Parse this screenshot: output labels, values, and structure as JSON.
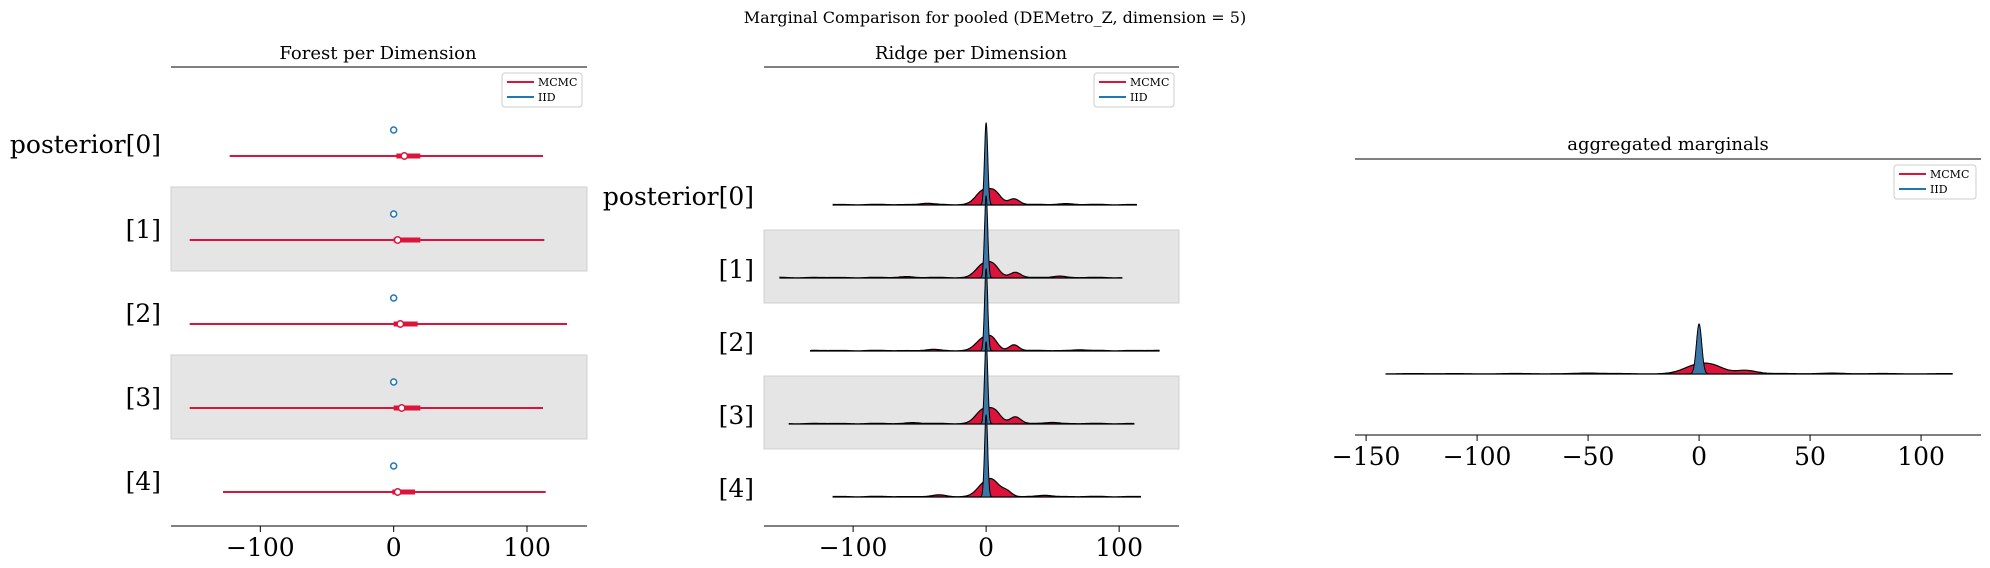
{
  "figure": {
    "title": "Marginal Comparison for pooled (DEMetro_Z, dimension = 5)"
  },
  "colors": {
    "mcmc": "#dc143c",
    "iid": "#1f77b4",
    "iid_fill": "#3b78a8",
    "band": "#e5e5e5"
  },
  "chart_data": [
    {
      "type": "forest",
      "title": "Forest per Dimension",
      "row_labels": [
        "posterior[0]",
        "[1]",
        "[2]",
        "[3]",
        "[4]"
      ],
      "x_ticks": [
        -100,
        0,
        100
      ],
      "x_tick_labels": [
        "−100",
        "0",
        "100"
      ],
      "xlim": [
        -167,
        145
      ],
      "legend": {
        "placement": "top-right",
        "entries": [
          "MCMC",
          "IID"
        ]
      },
      "series": [
        {
          "name": "MCMC",
          "rows": [
            {
              "low": -123,
              "q_low": 2,
              "median": 8,
              "q_high": 20,
              "high": 112
            },
            {
              "low": -153,
              "q_low": 0,
              "median": 3,
              "q_high": 20,
              "high": 113
            },
            {
              "low": -153,
              "q_low": 0,
              "median": 5,
              "q_high": 18,
              "high": 130
            },
            {
              "low": -153,
              "q_low": 0,
              "median": 6,
              "q_high": 20,
              "high": 112
            },
            {
              "low": -128,
              "q_low": -1,
              "median": 3,
              "q_high": 16,
              "high": 114
            }
          ]
        },
        {
          "name": "IID",
          "rows": [
            {
              "low": -2,
              "q_low": -1,
              "median": 0,
              "q_high": 1,
              "high": 2
            },
            {
              "low": -2,
              "q_low": -1,
              "median": 0,
              "q_high": 1,
              "high": 2
            },
            {
              "low": -2,
              "q_low": -1,
              "median": 0,
              "q_high": 1,
              "high": 2
            },
            {
              "low": -2,
              "q_low": -1,
              "median": 0,
              "q_high": 1,
              "high": 2
            },
            {
              "low": -2,
              "q_low": -1,
              "median": 0,
              "q_high": 1,
              "high": 2
            }
          ]
        }
      ]
    },
    {
      "type": "ridge",
      "title": "Ridge per Dimension",
      "row_labels": [
        "posterior[0]",
        "[1]",
        "[2]",
        "[3]",
        "[4]"
      ],
      "x_ticks": [
        -100,
        0,
        100
      ],
      "x_tick_labels": [
        "−100",
        "0",
        "100"
      ],
      "xlim": [
        -167,
        145
      ],
      "legend": {
        "placement": "top-right",
        "entries": [
          "MCMC",
          "IID"
        ]
      },
      "rows": [
        {
          "mcmc_range": [
            -115,
            113
          ],
          "mcmc_peaks": [
            [
              -2,
              1.4,
              0.14
            ],
            [
              7,
              1.0,
              0.11
            ],
            [
              21,
              0.6,
              0.1
            ],
            [
              -45,
              0.12,
              0.12
            ],
            [
              60,
              0.1,
              0.12
            ]
          ],
          "iid": {
            "mean": 0,
            "sd": 1.2
          }
        },
        {
          "mcmc_range": [
            -155,
            102
          ],
          "mcmc_peaks": [
            [
              -2,
              1.3,
              0.14
            ],
            [
              6,
              0.9,
              0.11
            ],
            [
              22,
              0.55,
              0.1
            ],
            [
              -60,
              0.1,
              0.12
            ],
            [
              55,
              0.15,
              0.12
            ]
          ],
          "iid": {
            "mean": 0,
            "sd": 1.2
          }
        },
        {
          "mcmc_range": [
            -132,
            130
          ],
          "mcmc_peaks": [
            [
              -2,
              1.2,
              0.14
            ],
            [
              5,
              0.8,
              0.1
            ],
            [
              21,
              0.6,
              0.09
            ],
            [
              -40,
              0.1,
              0.12
            ],
            [
              70,
              0.08,
              0.12
            ]
          ],
          "iid": {
            "mean": 0,
            "sd": 1.2
          }
        },
        {
          "mcmc_range": [
            -148,
            111
          ],
          "mcmc_peaks": [
            [
              -2,
              1.4,
              0.14
            ],
            [
              7,
              1.0,
              0.11
            ],
            [
              22,
              0.7,
              0.1
            ],
            [
              -55,
              0.1,
              0.12
            ],
            [
              50,
              0.12,
              0.12
            ]
          ],
          "iid": {
            "mean": 0,
            "sd": 1.2
          }
        },
        {
          "mcmc_range": [
            -115,
            116
          ],
          "mcmc_peaks": [
            [
              -1,
              1.3,
              0.14
            ],
            [
              6,
              1.0,
              0.11
            ],
            [
              15,
              0.6,
              0.1
            ],
            [
              -35,
              0.15,
              0.12
            ],
            [
              45,
              0.12,
              0.12
            ]
          ],
          "iid": {
            "mean": 0,
            "sd": 1.2
          }
        }
      ]
    },
    {
      "type": "ridge",
      "title": "aggregated marginals",
      "x_ticks": [
        -150,
        -100,
        -50,
        0,
        50,
        100
      ],
      "x_tick_labels": [
        "−150",
        "−100",
        "−50",
        "0",
        "50",
        "100"
      ],
      "xlim": [
        -155,
        127
      ],
      "legend": {
        "placement": "top-right",
        "entries": [
          "MCMC",
          "IID"
        ]
      },
      "rows": [
        {
          "mcmc_range": [
            -141,
            114
          ],
          "mcmc_peaks": [
            [
              -1,
              1.2,
              0.12
            ],
            [
              7,
              0.8,
              0.1
            ],
            [
              21,
              0.5,
              0.1
            ],
            [
              -50,
              0.1,
              0.1
            ],
            [
              60,
              0.08,
              0.1
            ]
          ],
          "iid": {
            "mean": 0,
            "sd": 1.2
          }
        }
      ]
    }
  ]
}
